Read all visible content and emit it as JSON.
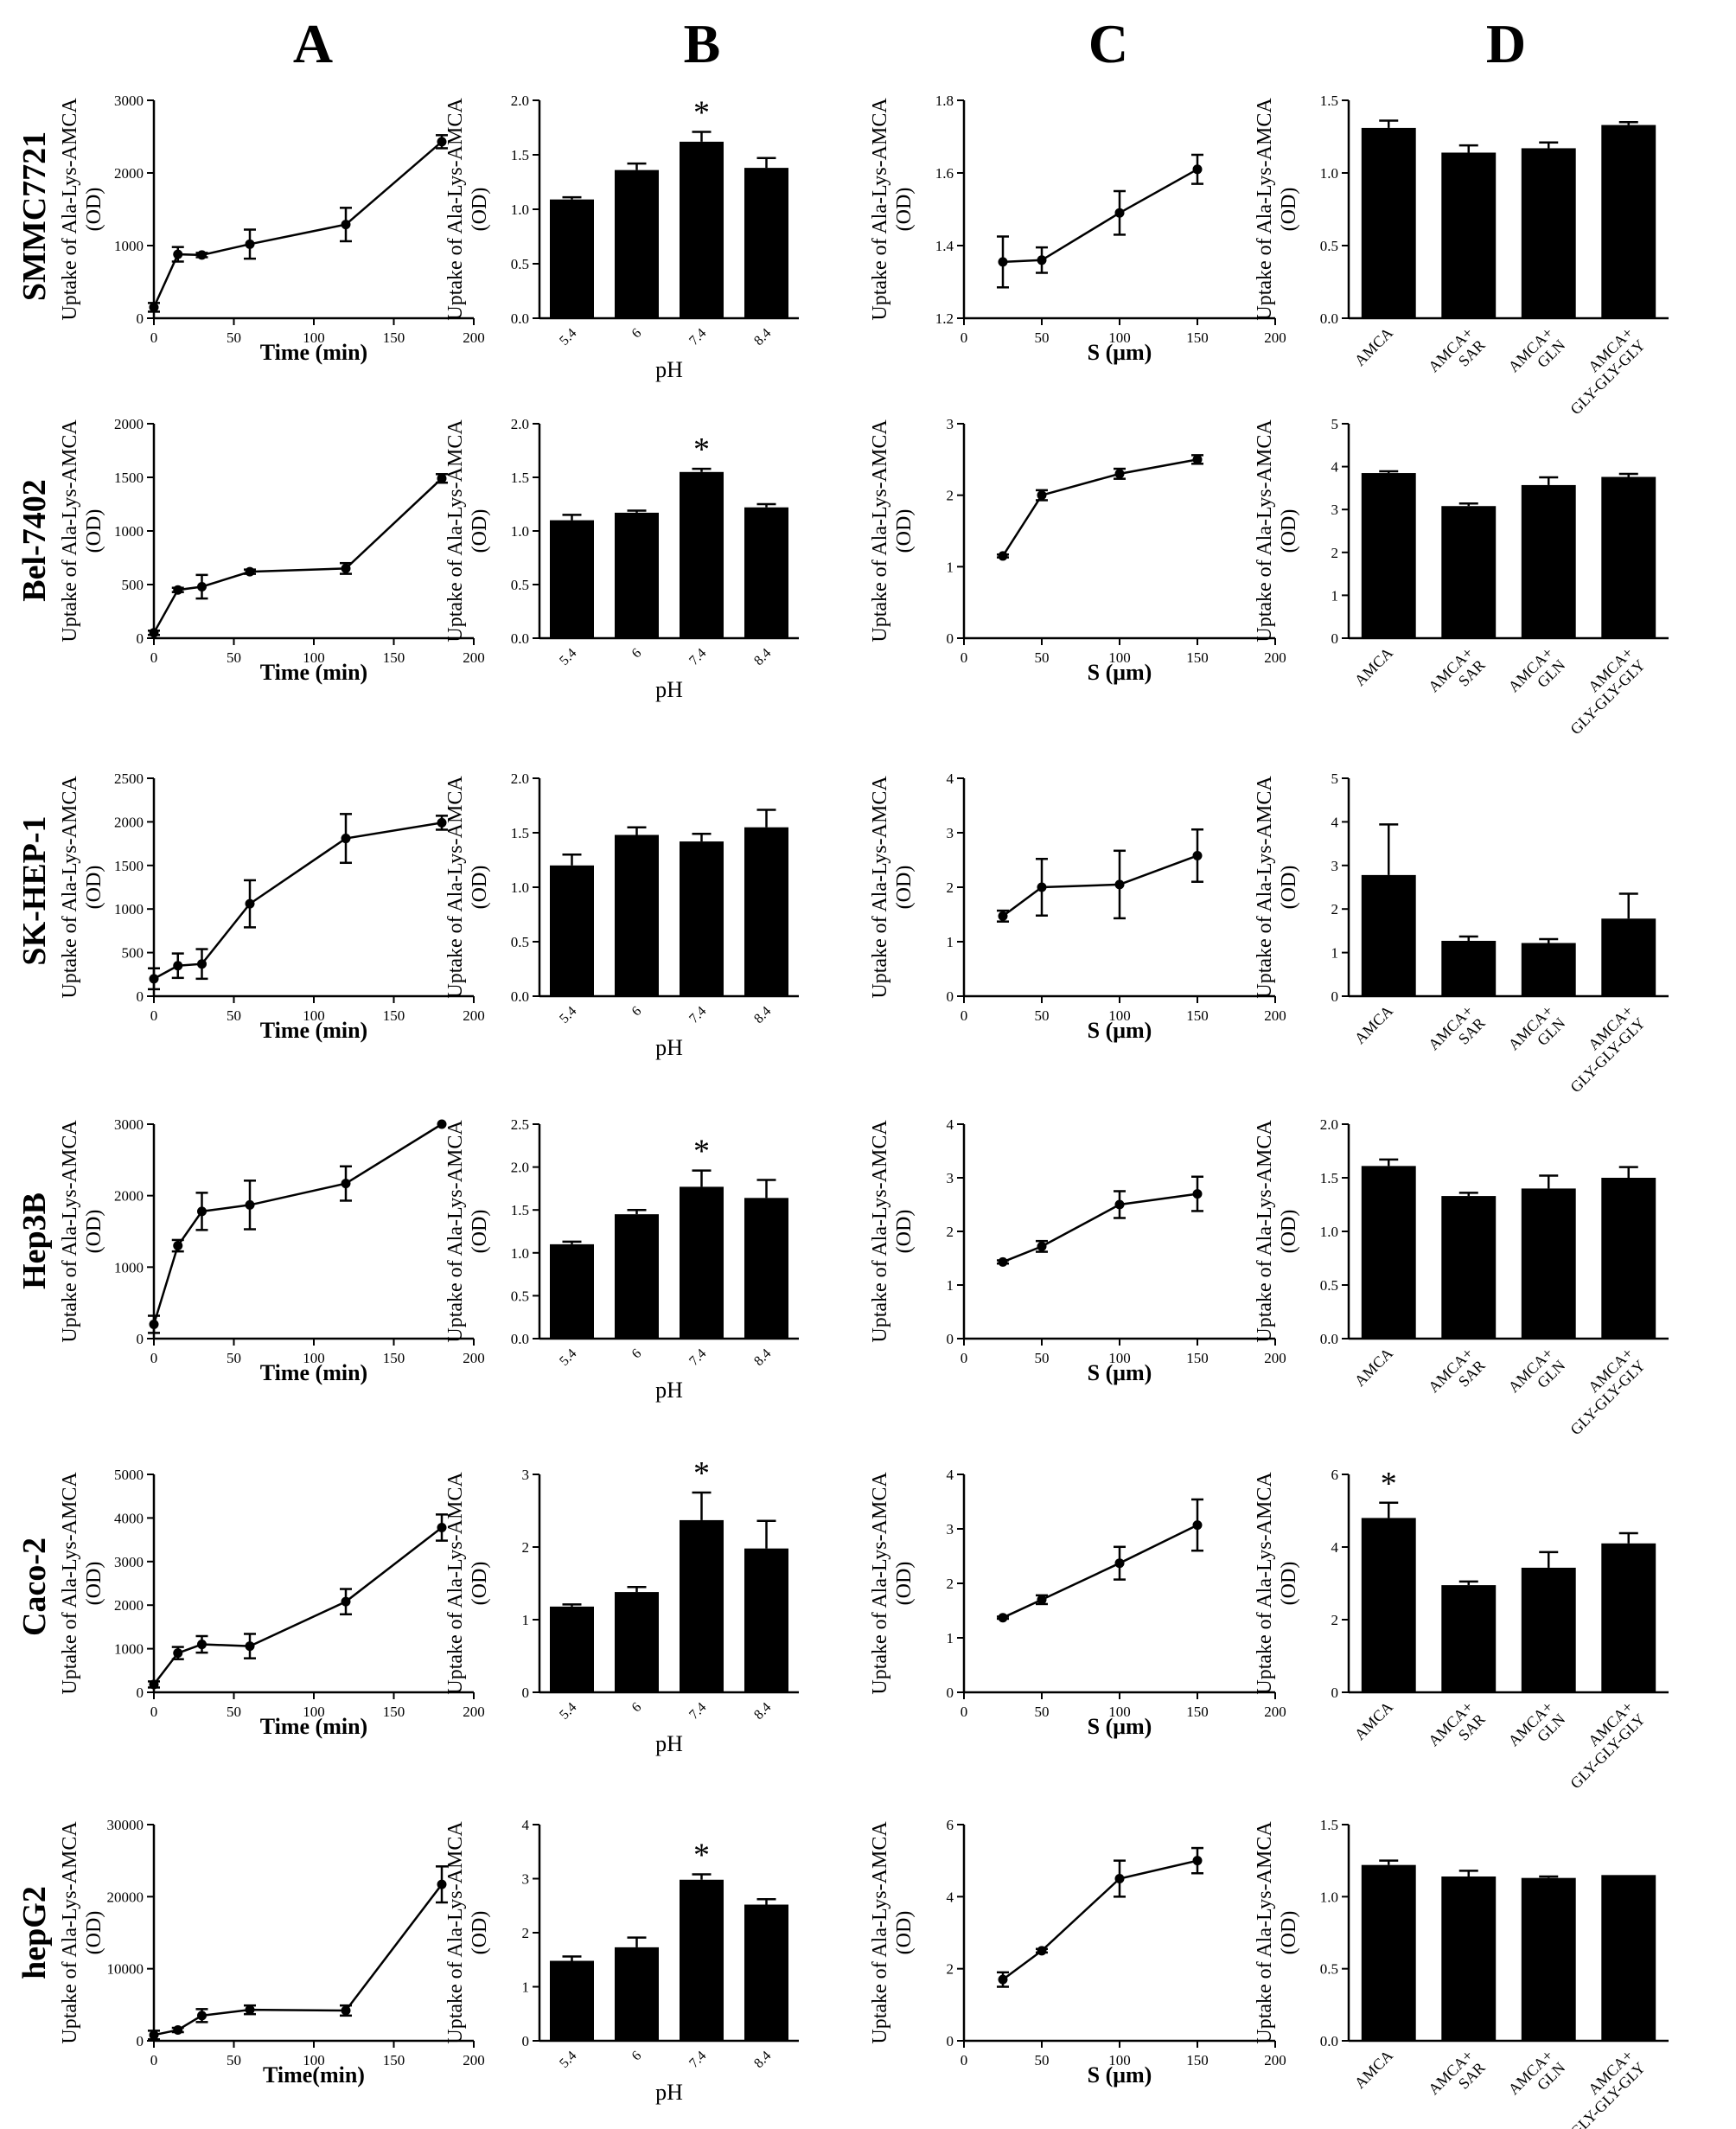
{
  "columns": [
    "A",
    "B",
    "C",
    "D"
  ],
  "rows": [
    "SMMC7721",
    "Bel-7402",
    "SK-HEP-1",
    "Hep3B",
    "Caco-2",
    "hepG2"
  ],
  "ylabel": "Uptake of Ala-Lys-AMCA\n(OD)",
  "chart_data": [
    {
      "panel": "SMMC7721-A",
      "type": "line",
      "xlabel": "Time (min)",
      "xlim": [
        0,
        200
      ],
      "xticks": [
        0,
        50,
        100,
        150,
        200
      ],
      "ylim": [
        0,
        3000
      ],
      "yticks": [
        0,
        1000,
        2000,
        3000
      ],
      "x": [
        0,
        15,
        30,
        60,
        120,
        180
      ],
      "y": [
        150,
        880,
        870,
        1020,
        1290,
        2430
      ],
      "err": [
        60,
        100,
        30,
        200,
        230,
        90
      ]
    },
    {
      "panel": "SMMC7721-B",
      "type": "bar",
      "xlabel": "pH",
      "categories": [
        "5.4",
        "6",
        "7.4",
        "8.4"
      ],
      "values": [
        1.09,
        1.36,
        1.62,
        1.38
      ],
      "err": [
        0.02,
        0.06,
        0.09,
        0.09
      ],
      "ylim": [
        0,
        2
      ],
      "yticks": [
        "0.0",
        "0.5",
        "1.0",
        "1.5",
        "2.0"
      ],
      "sig": [
        2
      ]
    },
    {
      "panel": "SMMC7721-C",
      "type": "line",
      "xlabel": "S (μm)",
      "xlim": [
        0,
        200
      ],
      "xticks": [
        0,
        50,
        100,
        150,
        200
      ],
      "ylim": [
        1.2,
        1.8
      ],
      "yticks": [
        "1.2",
        "1.4",
        "1.6",
        "1.8"
      ],
      "x": [
        25,
        50,
        100,
        150
      ],
      "y": [
        1.355,
        1.36,
        1.49,
        1.61
      ],
      "err": [
        0.07,
        0.035,
        0.06,
        0.04
      ]
    },
    {
      "panel": "SMMC7721-D",
      "type": "bar",
      "categories": [
        "AMCA",
        "AMCA+\nSAR",
        "AMCA+\nGLN",
        "AMCA+\nGLY-GLY-GLY"
      ],
      "values": [
        1.31,
        1.14,
        1.17,
        1.33
      ],
      "err": [
        0.05,
        0.05,
        0.04,
        0.02
      ],
      "ylim": [
        0,
        1.5
      ],
      "yticks": [
        "0.0",
        "0.5",
        "1.0",
        "1.5"
      ],
      "sig": []
    },
    {
      "panel": "Bel-7402-A",
      "type": "line",
      "xlabel": "Time (min)",
      "xlim": [
        0,
        200
      ],
      "xticks": [
        0,
        50,
        100,
        150,
        200
      ],
      "ylim": [
        0,
        2000
      ],
      "yticks": [
        0,
        500,
        1000,
        1500,
        2000
      ],
      "x": [
        0,
        15,
        30,
        60,
        120,
        180
      ],
      "y": [
        50,
        450,
        480,
        620,
        650,
        1490
      ],
      "err": [
        20,
        20,
        110,
        20,
        50,
        40
      ]
    },
    {
      "panel": "Bel-7402-B",
      "type": "bar",
      "xlabel": "pH",
      "categories": [
        "5.4",
        "6",
        "7.4",
        "8.4"
      ],
      "values": [
        1.1,
        1.17,
        1.55,
        1.22
      ],
      "err": [
        0.05,
        0.02,
        0.03,
        0.03
      ],
      "ylim": [
        0,
        2
      ],
      "yticks": [
        "0.0",
        "0.5",
        "1.0",
        "1.5",
        "2.0"
      ],
      "sig": [
        2
      ]
    },
    {
      "panel": "Bel-7402-C",
      "type": "line",
      "xlabel": "S (μm)",
      "xlim": [
        0,
        200
      ],
      "xticks": [
        0,
        50,
        100,
        150,
        200
      ],
      "ylim": [
        0,
        3
      ],
      "yticks": [
        "0",
        "1",
        "2",
        "3"
      ],
      "x": [
        25,
        50,
        100,
        150
      ],
      "y": [
        1.15,
        2.0,
        2.3,
        2.5
      ],
      "err": [
        0.02,
        0.07,
        0.07,
        0.06
      ]
    },
    {
      "panel": "Bel-7402-D",
      "type": "bar",
      "categories": [
        "AMCA",
        "AMCA+\nSAR",
        "AMCA+\nGLN",
        "AMCA+\nGLY-GLY-GLY"
      ],
      "values": [
        3.85,
        3.08,
        3.57,
        3.76
      ],
      "err": [
        0.04,
        0.06,
        0.18,
        0.07
      ],
      "ylim": [
        0,
        5
      ],
      "yticks": [
        "0",
        "1",
        "2",
        "3",
        "4",
        "5"
      ],
      "sig": []
    },
    {
      "panel": "SK-HEP-1-A",
      "type": "line",
      "xlabel": "Time (min)",
      "xlim": [
        0,
        200
      ],
      "xticks": [
        0,
        50,
        100,
        150,
        200
      ],
      "ylim": [
        0,
        2500
      ],
      "yticks": [
        0,
        500,
        1000,
        1500,
        2000,
        2500
      ],
      "x": [
        0,
        15,
        30,
        60,
        120,
        180
      ],
      "y": [
        200,
        350,
        370,
        1060,
        1810,
        1990
      ],
      "err": [
        120,
        140,
        170,
        270,
        280,
        80
      ]
    },
    {
      "panel": "SK-HEP-1-B",
      "type": "bar",
      "xlabel": "pH",
      "categories": [
        "5.4",
        "6",
        "7.4",
        "8.4"
      ],
      "values": [
        1.2,
        1.48,
        1.42,
        1.55
      ],
      "err": [
        0.1,
        0.07,
        0.07,
        0.16
      ],
      "ylim": [
        0,
        2
      ],
      "yticks": [
        "0.0",
        "0.5",
        "1.0",
        "1.5",
        "2.0"
      ],
      "sig": []
    },
    {
      "panel": "SK-HEP-1-C",
      "type": "line",
      "xlabel": "S (μm)",
      "xlim": [
        0,
        200
      ],
      "xticks": [
        0,
        50,
        100,
        150,
        200
      ],
      "ylim": [
        0,
        4
      ],
      "yticks": [
        "0",
        "1",
        "2",
        "3",
        "4"
      ],
      "x": [
        25,
        50,
        100,
        150
      ],
      "y": [
        1.47,
        2.0,
        2.05,
        2.58
      ],
      "err": [
        0.1,
        0.52,
        0.62,
        0.48
      ]
    },
    {
      "panel": "SK-HEP-1-D",
      "type": "bar",
      "categories": [
        "AMCA",
        "AMCA+\nSAR",
        "AMCA+\nGLN",
        "AMCA+\nGLY-GLY-GLY"
      ],
      "values": [
        2.78,
        1.27,
        1.22,
        1.78
      ],
      "err": [
        1.16,
        0.1,
        0.09,
        0.57
      ],
      "ylim": [
        0,
        5
      ],
      "yticks": [
        "0",
        "1",
        "2",
        "3",
        "4",
        "5"
      ],
      "sig": []
    },
    {
      "panel": "Hep3B-A",
      "type": "line",
      "xlabel": "Time (min)",
      "xlim": [
        0,
        200
      ],
      "xticks": [
        0,
        50,
        100,
        150,
        200
      ],
      "ylim": [
        0,
        3000
      ],
      "yticks": [
        0,
        1000,
        2000,
        3000
      ],
      "x": [
        0,
        15,
        30,
        60,
        120,
        180
      ],
      "y": [
        200,
        1300,
        1780,
        1870,
        2170,
        3000
      ],
      "err": [
        120,
        80,
        260,
        340,
        240,
        0
      ]
    },
    {
      "panel": "Hep3B-B",
      "type": "bar",
      "xlabel": "pH",
      "categories": [
        "5.4",
        "6",
        "7.4",
        "8.4"
      ],
      "values": [
        1.1,
        1.45,
        1.77,
        1.64
      ],
      "err": [
        0.03,
        0.05,
        0.19,
        0.21
      ],
      "ylim": [
        0,
        2.5
      ],
      "yticks": [
        "0.0",
        "0.5",
        "1.0",
        "1.5",
        "2.0",
        "2.5"
      ],
      "sig": [
        2
      ]
    },
    {
      "panel": "Hep3B-C",
      "type": "line",
      "xlabel": "S (μm)",
      "xlim": [
        0,
        200
      ],
      "xticks": [
        0,
        50,
        100,
        150,
        200
      ],
      "ylim": [
        0,
        4
      ],
      "yticks": [
        "0",
        "1",
        "2",
        "3",
        "4"
      ],
      "x": [
        25,
        50,
        100,
        150
      ],
      "y": [
        1.43,
        1.72,
        2.5,
        2.7
      ],
      "err": [
        0.03,
        0.1,
        0.25,
        0.32
      ]
    },
    {
      "panel": "Hep3B-D",
      "type": "bar",
      "categories": [
        "AMCA",
        "AMCA+\nSAR",
        "AMCA+\nGLN",
        "AMCA+\nGLY-GLY-GLY"
      ],
      "values": [
        1.61,
        1.33,
        1.4,
        1.5
      ],
      "err": [
        0.06,
        0.03,
        0.12,
        0.1
      ],
      "ylim": [
        0,
        2
      ],
      "yticks": [
        "0.0",
        "0.5",
        "1.0",
        "1.5",
        "2.0"
      ],
      "sig": []
    },
    {
      "panel": "Caco-2-A",
      "type": "line",
      "xlabel": "Time (min)",
      "xlim": [
        0,
        200
      ],
      "xticks": [
        0,
        50,
        100,
        150,
        200
      ],
      "ylim": [
        0,
        5000
      ],
      "yticks": [
        0,
        1000,
        2000,
        3000,
        4000,
        5000
      ],
      "x": [
        0,
        15,
        30,
        60,
        120,
        180
      ],
      "y": [
        180,
        900,
        1100,
        1060,
        2080,
        3780
      ],
      "err": [
        70,
        140,
        190,
        280,
        290,
        300
      ]
    },
    {
      "panel": "Caco-2-B",
      "type": "bar",
      "xlabel": "pH",
      "categories": [
        "5.4",
        "6",
        "7.4",
        "8.4"
      ],
      "values": [
        1.18,
        1.38,
        2.37,
        1.98
      ],
      "err": [
        0.03,
        0.07,
        0.38,
        0.38
      ],
      "ylim": [
        0,
        3
      ],
      "yticks": [
        "0",
        "1",
        "2",
        "3"
      ],
      "sig": [
        2
      ]
    },
    {
      "panel": "Caco-2-C",
      "type": "line",
      "xlabel": "S (μm)",
      "xlim": [
        0,
        200
      ],
      "xticks": [
        0,
        50,
        100,
        150,
        200
      ],
      "ylim": [
        0,
        4
      ],
      "yticks": [
        "0",
        "1",
        "2",
        "3",
        "4"
      ],
      "x": [
        25,
        50,
        100,
        150
      ],
      "y": [
        1.37,
        1.7,
        2.37,
        3.07
      ],
      "err": [
        0.02,
        0.08,
        0.3,
        0.47
      ]
    },
    {
      "panel": "Caco-2-D",
      "type": "bar",
      "categories": [
        "AMCA",
        "AMCA+\nSAR",
        "AMCA+\nGLN",
        "AMCA+\nGLY-GLY-GLY"
      ],
      "values": [
        4.8,
        2.95,
        3.43,
        4.1
      ],
      "err": [
        0.42,
        0.1,
        0.43,
        0.28
      ],
      "ylim": [
        0,
        6
      ],
      "yticks": [
        "0",
        "2",
        "4",
        "6"
      ],
      "sig": [
        0
      ]
    },
    {
      "panel": "hepG2-A",
      "type": "line",
      "xlabel": "Time(min)",
      "xlim": [
        0,
        200
      ],
      "xticks": [
        0,
        50,
        100,
        150,
        200
      ],
      "ylim": [
        0,
        30000
      ],
      "yticks": [
        0,
        10000,
        20000,
        30000
      ],
      "x": [
        0,
        15,
        30,
        60,
        120,
        180
      ],
      "y": [
        800,
        1500,
        3500,
        4300,
        4200,
        21700
      ],
      "err": [
        600,
        300,
        900,
        600,
        700,
        2500
      ]
    },
    {
      "panel": "hepG2-B",
      "type": "bar",
      "xlabel": "pH",
      "categories": [
        "5.4",
        "6",
        "7.4",
        "8.4"
      ],
      "values": [
        1.48,
        1.73,
        2.98,
        2.52
      ],
      "err": [
        0.08,
        0.18,
        0.1,
        0.1
      ],
      "ylim": [
        0,
        4
      ],
      "yticks": [
        "0",
        "1",
        "2",
        "3",
        "4"
      ],
      "sig": [
        2
      ]
    },
    {
      "panel": "hepG2-C",
      "type": "line",
      "xlabel": "S (μm)",
      "xlim": [
        0,
        200
      ],
      "xticks": [
        0,
        50,
        100,
        150,
        200
      ],
      "ylim": [
        0,
        6
      ],
      "yticks": [
        "0",
        "2",
        "4",
        "6"
      ],
      "x": [
        25,
        50,
        100,
        150
      ],
      "y": [
        1.7,
        2.5,
        4.5,
        5.0
      ],
      "err": [
        0.2,
        0.05,
        0.5,
        0.35
      ]
    },
    {
      "panel": "hepG2-D",
      "type": "bar",
      "categories": [
        "AMCA",
        "AMCA+\nSAR",
        "AMCA+\nGLN",
        "AMCA+\nGLY-GLY-GLY"
      ],
      "values": [
        1.22,
        1.14,
        1.13,
        1.15
      ],
      "err": [
        0.03,
        0.04,
        0.01,
        0.0
      ],
      "ylim": [
        0,
        1.5
      ],
      "yticks": [
        "0.0",
        "0.5",
        "1.0",
        "1.5"
      ],
      "sig": []
    }
  ]
}
